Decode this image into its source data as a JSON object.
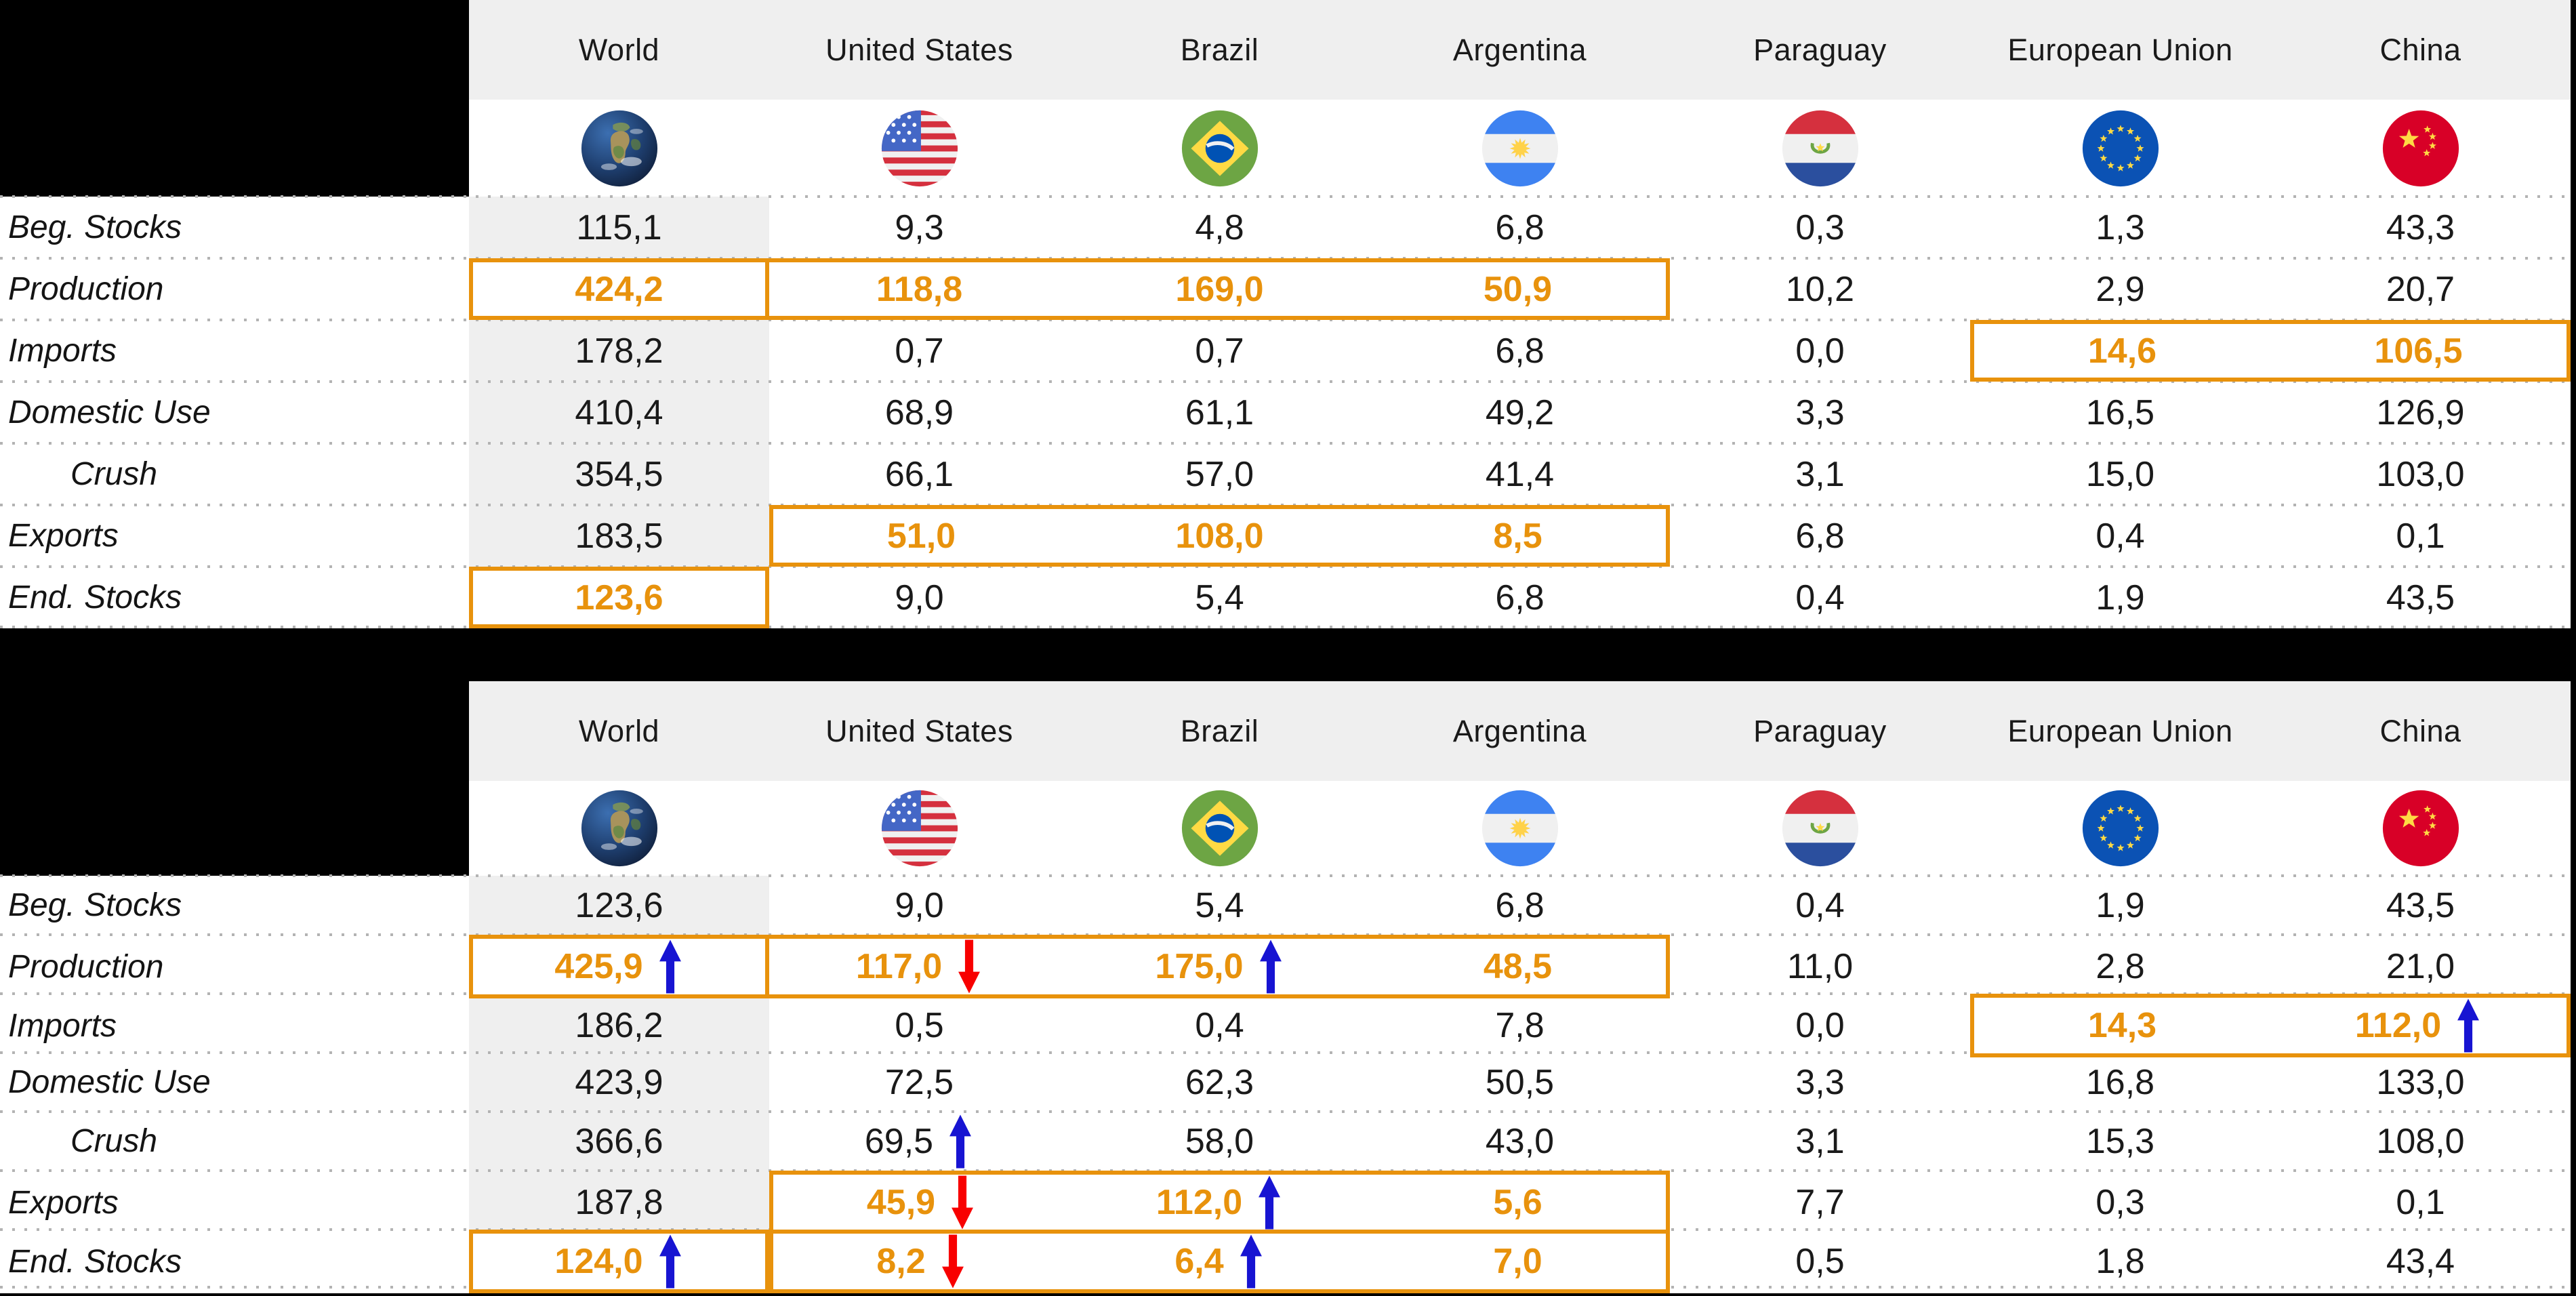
{
  "colors": {
    "accent_orange": "#E8920C",
    "arrow_up_blue": "#1714D2",
    "arrow_down_red": "#F80000",
    "header_bg": "#EFEFEF",
    "world_column_bg": "#EFEFEF",
    "page_bg": "#000000",
    "dotted_line": "#B3B3B3",
    "text": "#1A1A1A"
  },
  "columns": [
    {
      "label": "World",
      "icon": "world-globe-icon"
    },
    {
      "label": "United States",
      "icon": "us-flag-icon"
    },
    {
      "label": "Brazil",
      "icon": "brazil-flag-icon"
    },
    {
      "label": "Argentina",
      "icon": "argentina-flag-icon"
    },
    {
      "label": "Paraguay",
      "icon": "paraguay-flag-icon"
    },
    {
      "label": "European Union",
      "icon": "eu-flag-icon"
    },
    {
      "label": "China",
      "icon": "china-flag-icon"
    }
  ],
  "row_labels": [
    "Beg. Stocks",
    "Production",
    "Imports",
    "Domestic Use",
    "Crush",
    "Exports",
    "End. Stocks"
  ],
  "chart_data": {
    "type": "table",
    "decimal_separator": ",",
    "tables": [
      {
        "id": "soybean-balance-table-1",
        "rows": [
          {
            "label": "Beg. Stocks",
            "cells": [
              {
                "v": "115,1"
              },
              {
                "v": "9,3"
              },
              {
                "v": "4,8"
              },
              {
                "v": "6,8"
              },
              {
                "v": "0,3"
              },
              {
                "v": "1,3"
              },
              {
                "v": "43,3"
              }
            ]
          },
          {
            "label": "Production",
            "cells": [
              {
                "v": "424,2",
                "hl": 1,
                "box": "LTRB"
              },
              {
                "v": "118,8",
                "hl": 1,
                "box": "TB"
              },
              {
                "v": "169,0",
                "hl": 1,
                "box": "TB"
              },
              {
                "v": "50,9",
                "hl": 1,
                "box": "TBR"
              },
              {
                "v": "10,2"
              },
              {
                "v": "2,9"
              },
              {
                "v": "20,7"
              }
            ]
          },
          {
            "label": "Imports",
            "cells": [
              {
                "v": "178,2"
              },
              {
                "v": "0,7"
              },
              {
                "v": "0,7"
              },
              {
                "v": "6,8"
              },
              {
                "v": "0,0"
              },
              {
                "v": "14,6",
                "hl": 1,
                "box": "LTB"
              },
              {
                "v": "106,5",
                "hl": 1,
                "box": "TBR"
              }
            ]
          },
          {
            "label": "Domestic Use",
            "cells": [
              {
                "v": "410,4"
              },
              {
                "v": "68,9"
              },
              {
                "v": "61,1"
              },
              {
                "v": "49,2"
              },
              {
                "v": "3,3"
              },
              {
                "v": "16,5"
              },
              {
                "v": "126,9"
              }
            ]
          },
          {
            "label": "Crush",
            "indent": true,
            "cells": [
              {
                "v": "354,5"
              },
              {
                "v": "66,1"
              },
              {
                "v": "57,0"
              },
              {
                "v": "41,4"
              },
              {
                "v": "3,1"
              },
              {
                "v": "15,0"
              },
              {
                "v": "103,0"
              }
            ]
          },
          {
            "label": "Exports",
            "cells": [
              {
                "v": "183,5"
              },
              {
                "v": "51,0",
                "hl": 1,
                "box": "LTB"
              },
              {
                "v": "108,0",
                "hl": 1,
                "box": "TB"
              },
              {
                "v": "8,5",
                "hl": 1,
                "box": "TBR"
              },
              {
                "v": "6,8"
              },
              {
                "v": "0,4"
              },
              {
                "v": "0,1"
              }
            ]
          },
          {
            "label": "End. Stocks",
            "cells": [
              {
                "v": "123,6",
                "hl": 1,
                "box": "LTRB"
              },
              {
                "v": "9,0"
              },
              {
                "v": "5,4"
              },
              {
                "v": "6,8"
              },
              {
                "v": "0,4"
              },
              {
                "v": "1,9"
              },
              {
                "v": "43,5"
              }
            ]
          }
        ]
      },
      {
        "id": "soybean-balance-table-2",
        "rows": [
          {
            "label": "Beg. Stocks",
            "cells": [
              {
                "v": "123,6"
              },
              {
                "v": "9,0"
              },
              {
                "v": "5,4"
              },
              {
                "v": "6,8"
              },
              {
                "v": "0,4"
              },
              {
                "v": "1,9"
              },
              {
                "v": "43,5"
              }
            ]
          },
          {
            "label": "Production",
            "cells": [
              {
                "v": "425,9",
                "hl": 1,
                "box": "LTRB",
                "arrow": "up"
              },
              {
                "v": "117,0",
                "hl": 1,
                "box": "TB",
                "arrow": "down"
              },
              {
                "v": "175,0",
                "hl": 1,
                "box": "TB",
                "arrow": "up"
              },
              {
                "v": "48,5",
                "hl": 1,
                "box": "TBR"
              },
              {
                "v": "11,0"
              },
              {
                "v": "2,8"
              },
              {
                "v": "21,0"
              }
            ]
          },
          {
            "label": "Imports",
            "cells": [
              {
                "v": "186,2"
              },
              {
                "v": "0,5"
              },
              {
                "v": "0,4"
              },
              {
                "v": "7,8"
              },
              {
                "v": "0,0"
              },
              {
                "v": "14,3",
                "hl": 1,
                "box": "LTB"
              },
              {
                "v": "112,0",
                "hl": 1,
                "box": "TBR",
                "arrow": "up"
              }
            ]
          },
          {
            "label": "Domestic Use",
            "cells": [
              {
                "v": "423,9"
              },
              {
                "v": "72,5"
              },
              {
                "v": "62,3"
              },
              {
                "v": "50,5"
              },
              {
                "v": "3,3"
              },
              {
                "v": "16,8"
              },
              {
                "v": "133,0"
              }
            ]
          },
          {
            "label": "Crush",
            "indent": true,
            "cells": [
              {
                "v": "366,6"
              },
              {
                "v": "69,5",
                "arrow": "up"
              },
              {
                "v": "58,0"
              },
              {
                "v": "43,0"
              },
              {
                "v": "3,1"
              },
              {
                "v": "15,3"
              },
              {
                "v": "108,0"
              }
            ]
          },
          {
            "label": "Exports",
            "cells": [
              {
                "v": "187,8"
              },
              {
                "v": "45,9",
                "hl": 1,
                "box": "LTB",
                "arrow": "down"
              },
              {
                "v": "112,0",
                "hl": 1,
                "box": "TB",
                "arrow": "up"
              },
              {
                "v": "5,6",
                "hl": 1,
                "box": "TBR"
              },
              {
                "v": "7,7"
              },
              {
                "v": "0,3"
              },
              {
                "v": "0,1"
              }
            ]
          },
          {
            "label": "End. Stocks",
            "cells": [
              {
                "v": "124,0",
                "hl": 1,
                "box": "LTRB",
                "arrow": "up"
              },
              {
                "v": "8,2",
                "hl": 1,
                "box": "LTB",
                "arrow": "down"
              },
              {
                "v": "6,4",
                "hl": 1,
                "box": "TB",
                "arrow": "up"
              },
              {
                "v": "7,0",
                "hl": 1,
                "box": "TBR"
              },
              {
                "v": "0,5"
              },
              {
                "v": "1,8"
              },
              {
                "v": "43,4"
              }
            ]
          }
        ]
      }
    ]
  }
}
